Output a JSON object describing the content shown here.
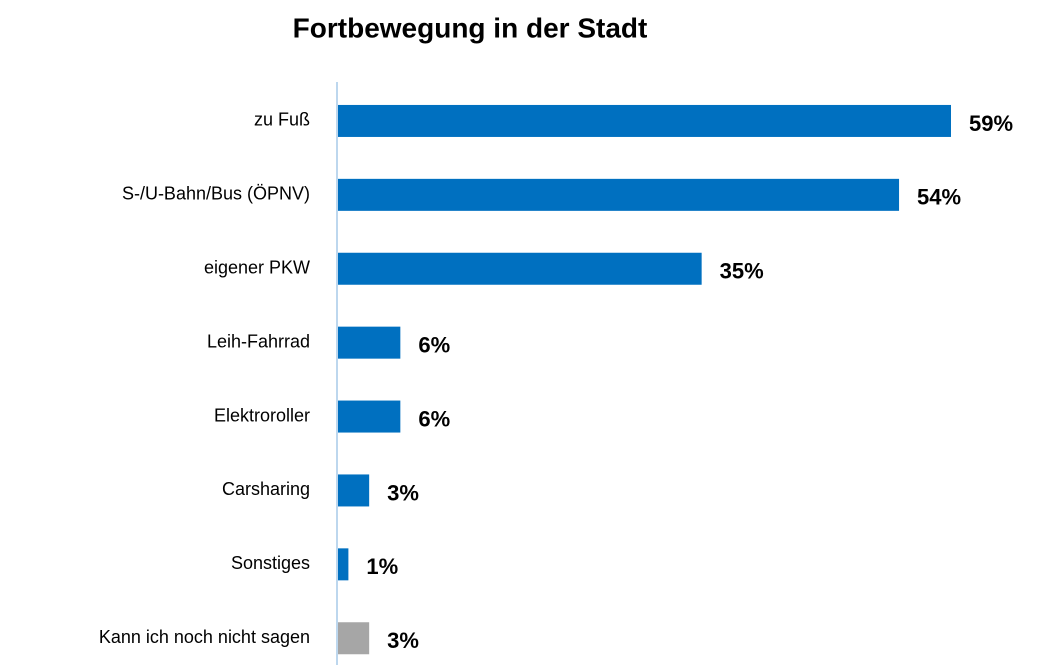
{
  "chart_data": {
    "type": "hbar",
    "title": "Fortbewegung in der Stadt",
    "categories": [
      "zu Fuß",
      "S-/U-Bahn/Bus (ÖPNV)",
      "eigener PKW",
      "Leih-Fahrrad",
      "Elektroroller",
      "Carsharing",
      "Sonstiges",
      "Kann ich noch nicht sagen"
    ],
    "values": [
      59,
      54,
      35,
      6,
      6,
      3,
      1,
      3
    ],
    "value_labels": [
      "59%",
      "54%",
      "35%",
      "6%",
      "6%",
      "3%",
      "1%",
      "3%"
    ],
    "colors": [
      "#0070c0",
      "#0070c0",
      "#0070c0",
      "#0070c0",
      "#0070c0",
      "#0070c0",
      "#0070c0",
      "#a6a6a6"
    ]
  }
}
